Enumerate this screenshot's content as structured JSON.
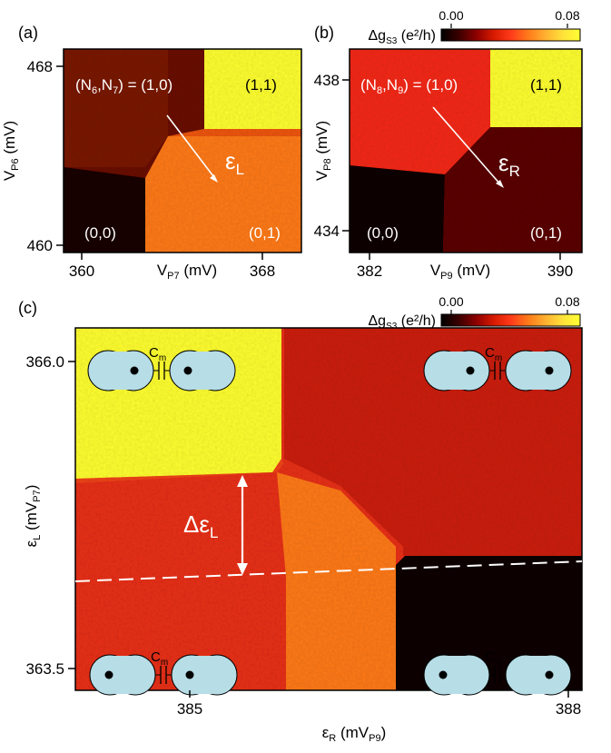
{
  "panels": {
    "a": {
      "label": "(a)"
    },
    "b": {
      "label": "(b)"
    },
    "c": {
      "label": "(c)"
    }
  },
  "colorbar": {
    "min_label": "0.00",
    "max_label": "0.08",
    "units_label": "(e²/h)",
    "quantity_main": "Δg",
    "quantity_sub": "S3",
    "stops": [
      "#000000",
      "#3a0000",
      "#8b0000",
      "#d61a00",
      "#ff3a1a",
      "#ff7a1a",
      "#ffb030",
      "#ffe23a",
      "#ffff33"
    ]
  },
  "colors": {
    "dot_fill": "#b7dde6",
    "white_text": "#ffffff"
  },
  "chart_data": [
    {
      "type": "heatmap",
      "panel": "a",
      "xlabel": {
        "main": "V",
        "sub": "P7",
        "unit": " (mV)"
      },
      "ylabel": {
        "main": "V",
        "sub": "P6",
        "unit": " (mV)"
      },
      "x_ticks": [
        "360",
        "368"
      ],
      "y_ticks": [
        "468",
        "460"
      ],
      "xlim": [
        359.5,
        370
      ],
      "ylim": [
        459.7,
        469.5
      ],
      "state_label_prefix": "(N",
      "state_label_text": {
        "p1": "(N",
        "s1": "6",
        "p2": ",N",
        "s2": "7",
        "p3": ") = (1,0)"
      },
      "regions": {
        "top_right": "(1,1)",
        "bottom_left": "(0,0)",
        "bottom_right": "(0,1)"
      },
      "arrow_label": {
        "main": "ε",
        "sub": "L"
      },
      "region_values": {
        "(1,0)": 0.02,
        "(1,1)": 0.08,
        "(0,0)": 0.002,
        "(0,1)": 0.055,
        "(1,0)-lower": 0.028
      }
    },
    {
      "type": "heatmap",
      "panel": "b",
      "xlabel": {
        "main": "V",
        "sub": "P9",
        "unit": " (mV)"
      },
      "ylabel": {
        "main": "V",
        "sub": "P8",
        "unit": " (mV)"
      },
      "x_ticks": [
        "382",
        "390"
      ],
      "y_ticks": [
        "438",
        "434"
      ],
      "xlim": [
        381.5,
        391.5
      ],
      "ylim": [
        433.3,
        439.3
      ],
      "state_label_text": {
        "p1": "(N",
        "s1": "8",
        "p2": ",N",
        "s2": "9",
        "p3": ") = (1,0)"
      },
      "regions": {
        "top_right": "(1,1)",
        "bottom_left": "(0,0)",
        "bottom_right": "(0,1)"
      },
      "arrow_label": {
        "main": "ε",
        "sub": "R"
      },
      "region_values": {
        "(1,0)": 0.036,
        "(1,1)": 0.08,
        "(0,0)": 0.003,
        "(0,1)": 0.014
      }
    },
    {
      "type": "heatmap",
      "panel": "c",
      "xlabel": {
        "main": "ε",
        "sub": "R",
        "unit": " (mV",
        "sub2": "P9",
        "close": ")"
      },
      "ylabel": {
        "main": "ε",
        "sub": "L",
        "unit": " (mV",
        "sub2": "P7",
        "close": ")"
      },
      "x_ticks": [
        "385",
        "388"
      ],
      "y_ticks": [
        "366.0",
        "363.5"
      ],
      "xlim": [
        383.8,
        388
      ],
      "ylim": [
        363.2,
        366.3
      ],
      "delta_label": {
        "main": "Δε",
        "sub": "L"
      },
      "coupling_label": {
        "main": "C",
        "sub": "m"
      },
      "region_values": {
        "top_left": 0.08,
        "top_right": 0.033,
        "bottom_left": 0.036,
        "center": 0.055,
        "bottom_right": 0.002
      }
    }
  ]
}
